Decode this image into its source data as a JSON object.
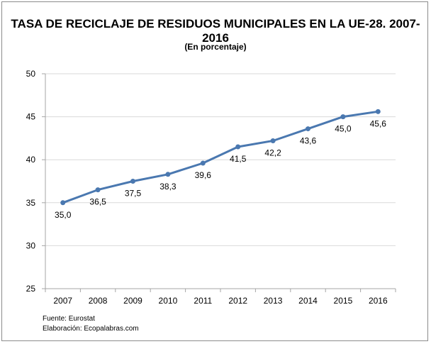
{
  "title": "TASA DE RECICLAJE DE RESIDUOS MUNICIPALES EN LA UE-28. 2007-2016",
  "subtitle": "(En porcentaje)",
  "footer": {
    "source": "Fuente: Eurostat",
    "credit": "Elaboración: Ecopalabras.com"
  },
  "colors": {
    "line": "#4a78b0",
    "grid": "#d9d9d9",
    "axis": "#a6a6a6"
  },
  "chart_data": {
    "type": "line",
    "title": "TASA DE RECICLAJE DE RESIDUOS MUNICIPALES EN LA UE-28. 2007-2016",
    "subtitle": "(En porcentaje)",
    "xlabel": "",
    "ylabel": "",
    "categories": [
      "2007",
      "2008",
      "2009",
      "2010",
      "2011",
      "2012",
      "2013",
      "2014",
      "2015",
      "2016"
    ],
    "series": [
      {
        "values": [
          35.0,
          36.5,
          37.5,
          38.3,
          39.6,
          41.5,
          42.2,
          43.6,
          45.0,
          45.6
        ],
        "labels": [
          "35,0",
          "36,5",
          "37,5",
          "38,3",
          "39,6",
          "41,5",
          "42,2",
          "43,6",
          "45,0",
          "45,6"
        ]
      }
    ],
    "ylim": [
      25,
      50
    ],
    "yticks": [
      25,
      30,
      35,
      40,
      45,
      50
    ],
    "grid": true,
    "legend": "none"
  }
}
